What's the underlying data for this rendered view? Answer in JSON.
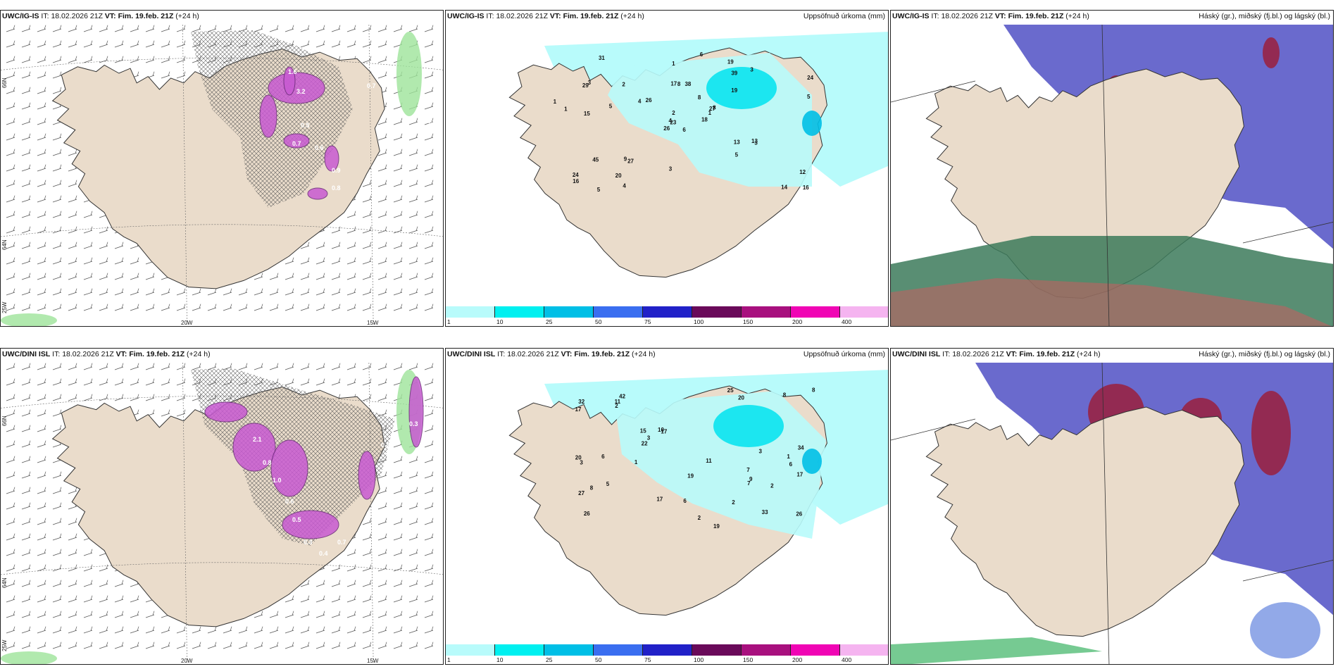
{
  "header_line": {
    "it_label": "IT:",
    "init_time": "18.02.2026 21Z",
    "vt_label": "VT:",
    "valid_time": "Fim. 19.feb. 21Z",
    "lead": "(+24 h)"
  },
  "rows": [
    {
      "model": "UWC/IG-IS",
      "panels": [
        {
          "type": "snow-wind",
          "right_title": ""
        },
        {
          "type": "precip",
          "right_title": "Uppsöfnuð úrkoma (mm)"
        },
        {
          "type": "ptype",
          "right_title": "Háský (gr.), miðský (fj.bl.) og lágský (bl.)"
        }
      ]
    },
    {
      "model": "UWC/DINI ISL",
      "panels": [
        {
          "type": "snow-wind",
          "right_title": ""
        },
        {
          "type": "precip",
          "right_title": "Uppsöfnuð úrkoma (mm)"
        },
        {
          "type": "ptype",
          "right_title": "Háský (gr.), miðský (fj.bl.) og lágský (bl.)"
        }
      ]
    }
  ],
  "axis_labels": {
    "lon_20": "20W",
    "lon_15": "15W",
    "lat_66": "66N",
    "lat_64": "64N",
    "lon_25": "25W"
  },
  "colorbar": {
    "ticks": [
      "1",
      "10",
      "25",
      "50",
      "75",
      "100",
      "150",
      "200",
      "400"
    ],
    "colors": [
      "#b8fbfb",
      "#00f0f0",
      "#00bfe6",
      "#3a6ef0",
      "#2121c8",
      "#6a0a5a",
      "#a8107e",
      "#f005b4",
      "#f5b4f0"
    ]
  },
  "precip_values": {
    "top": [
      "6",
      "29",
      "23",
      "24",
      "27",
      "27",
      "19",
      "38",
      "39",
      "18",
      "31",
      "16",
      "15",
      "24",
      "26",
      "19",
      "5",
      "17",
      "8",
      "45",
      "26",
      "16",
      "20",
      "8",
      "8",
      "3",
      "3",
      "1",
      "1",
      "13",
      "5",
      "4",
      "3",
      "2",
      "2",
      "3",
      "9",
      "14",
      "12",
      "13",
      "6",
      "4",
      "5",
      "5",
      "4",
      "1",
      "1"
    ],
    "bottom": [
      "7",
      "6",
      "26",
      "42",
      "17",
      "33",
      "27",
      "20",
      "15",
      "19",
      "17",
      "20",
      "32",
      "26",
      "17",
      "34",
      "19",
      "11",
      "10",
      "5",
      "8",
      "8",
      "22",
      "17",
      "25",
      "11",
      "9",
      "3",
      "2",
      "3",
      "2",
      "2",
      "3",
      "1",
      "1",
      "2",
      "7",
      "6",
      "6",
      "8"
    ]
  },
  "snow_values": {
    "top": [
      "3.2",
      "1.6",
      "0.7",
      "0.6",
      "0.5",
      "0.9",
      "0.7",
      "0.8",
      "0.6"
    ],
    "bottom": [
      "2.1",
      "0.8",
      "1.0",
      "0.6",
      "0.5",
      "0.3",
      "0.4",
      "0.7",
      "0.8",
      "0.3"
    ]
  }
}
